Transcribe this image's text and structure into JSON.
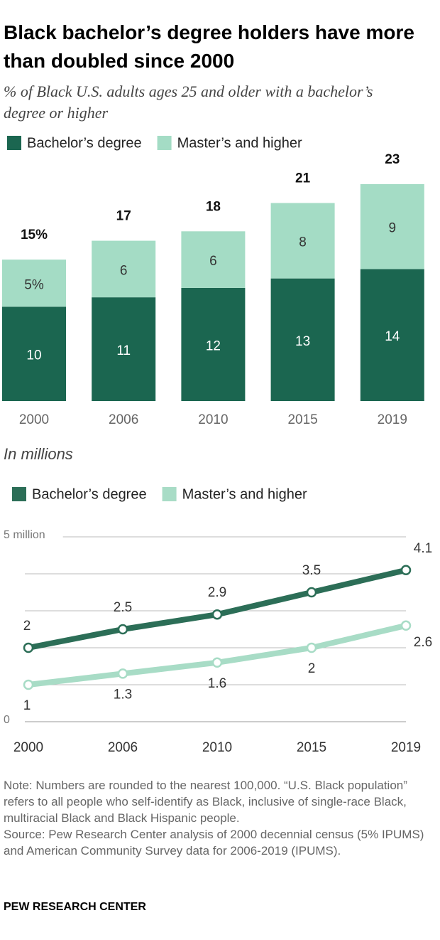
{
  "chart_data": [
    {
      "type": "stacked-bar",
      "title": "Black bachelor’s degree holders have more than doubled since 2000",
      "subtitle": "% of Black U.S. adults ages 25 and older with a bachelor’s degree or higher",
      "categories": [
        "2000",
        "2006",
        "2010",
        "2015",
        "2019"
      ],
      "series": [
        {
          "name": "Bachelor’s degree",
          "color": "#1b6650",
          "values": [
            10,
            11,
            12,
            13,
            14
          ]
        },
        {
          "name": "Master’s and higher",
          "color": "#a4dcc5",
          "values": [
            5,
            6,
            6,
            8,
            9
          ],
          "value_labels": [
            "5%",
            "6",
            "6",
            "8",
            "9"
          ]
        }
      ],
      "totals": [
        15,
        17,
        18,
        21,
        23
      ],
      "total_labels": [
        "15%",
        "17",
        "18",
        "21",
        "23"
      ]
    },
    {
      "type": "line",
      "subtitle": "In millions",
      "categories": [
        "2000",
        "2006",
        "2010",
        "2015",
        "2019"
      ],
      "series": [
        {
          "name": "Bachelor’s degree",
          "color": "#2c6e57",
          "values": [
            2,
            2.5,
            2.9,
            3.5,
            4.1
          ]
        },
        {
          "name": "Master’s and higher",
          "color": "#a8dcc6",
          "values": [
            1,
            1.3,
            1.6,
            2,
            2.6
          ]
        }
      ],
      "ylim": [
        0,
        5
      ],
      "yticks": [
        0,
        {
          "value": 1,
          "label": null
        },
        {
          "value": 2,
          "label": null
        },
        {
          "value": 3,
          "label": null
        },
        {
          "value": 4,
          "label": null
        },
        {
          "value": 5,
          "label": "5 million"
        }
      ],
      "grid": true
    }
  ],
  "notes": {
    "note": "Note: Numbers are rounded to the nearest 100,000. “U.S. Black population” refers to all people who self-identify as Black, inclusive of single-race Black, multiracial Black and Black Hispanic people.",
    "source": "Source: Pew Research Center analysis of 2000 decennial census (5% IPUMS) and American Community Survey data for 2006-2019 (IPUMS).",
    "credit": "PEW RESEARCH CENTER"
  }
}
